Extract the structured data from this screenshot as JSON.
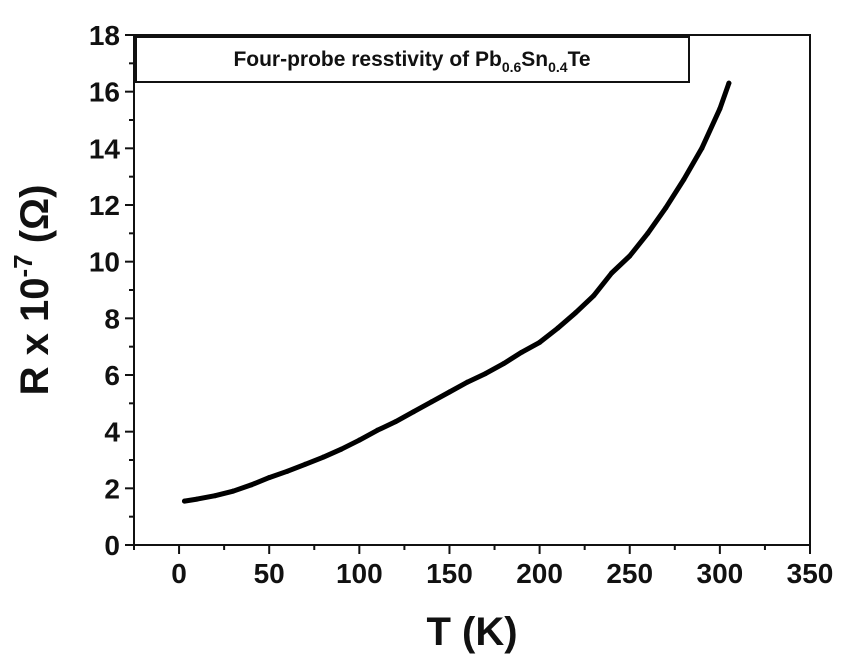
{
  "chart_data": {
    "type": "line",
    "title": "",
    "xlabel": "T (K)",
    "ylabel": {
      "main": "R x 10",
      "exponent": "-7",
      "unit": " (Ω)"
    },
    "xlim": [
      -25,
      350
    ],
    "ylim": [
      0,
      18
    ],
    "x_ticks": [
      0,
      50,
      100,
      150,
      200,
      250,
      300,
      350
    ],
    "y_ticks": [
      0,
      2,
      4,
      6,
      8,
      10,
      12,
      14,
      16,
      18
    ],
    "grid": false,
    "legend_position": "top",
    "legend": {
      "prefix": "Four-probe resstivity of Pb",
      "sub1": "0.6",
      "mid": "Sn",
      "sub2": "0.4",
      "suffix": "Te"
    },
    "series": [
      {
        "color": "#000000",
        "x": [
          3,
          10,
          20,
          30,
          40,
          50,
          60,
          70,
          80,
          90,
          100,
          110,
          120,
          130,
          140,
          150,
          160,
          170,
          180,
          190,
          200,
          210,
          220,
          230,
          240,
          250,
          260,
          270,
          280,
          290,
          300,
          305
        ],
        "y": [
          1.55,
          1.62,
          1.74,
          1.9,
          2.12,
          2.38,
          2.6,
          2.85,
          3.1,
          3.38,
          3.7,
          4.05,
          4.35,
          4.7,
          5.05,
          5.4,
          5.75,
          6.05,
          6.4,
          6.8,
          7.15,
          7.65,
          8.2,
          8.8,
          9.6,
          10.2,
          11.0,
          11.9,
          12.9,
          14.0,
          15.4,
          16.3
        ]
      }
    ]
  }
}
